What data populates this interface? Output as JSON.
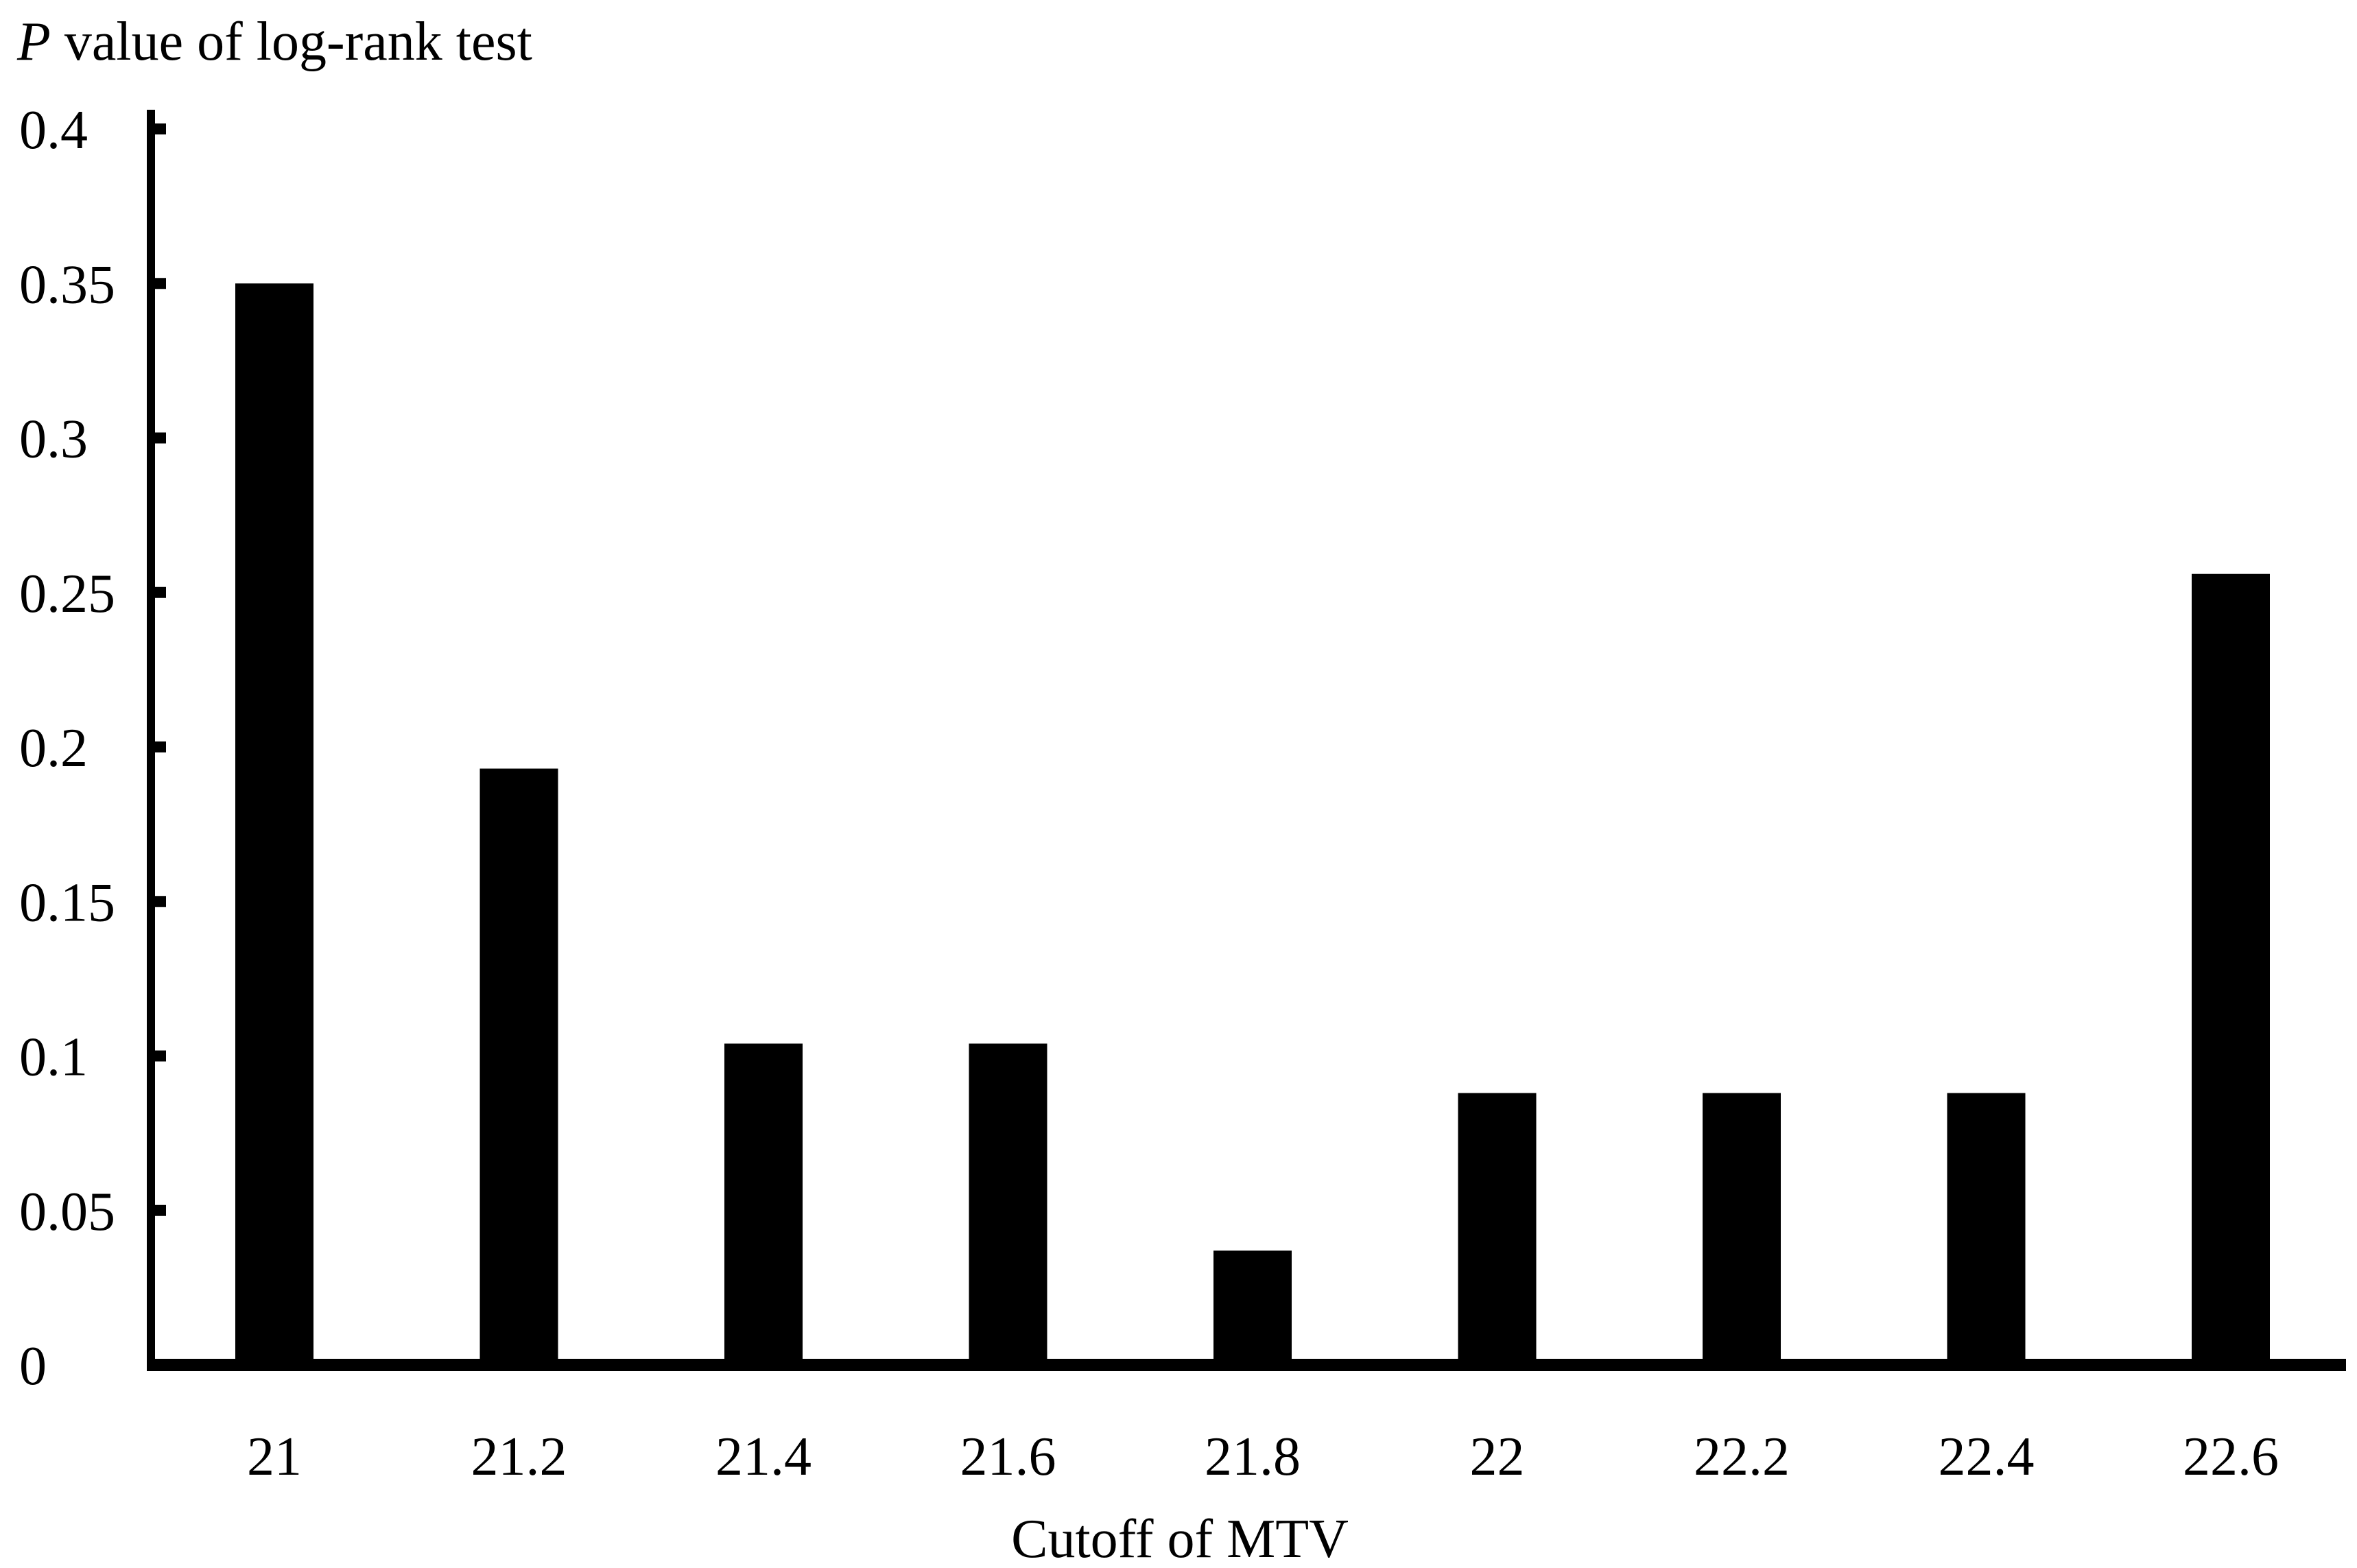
{
  "chart_data": {
    "type": "bar",
    "title": "",
    "ylabel_italic": "P",
    "ylabel_rest": " value of log-rank test",
    "xlabel": "Cutoff of MTV",
    "categories": [
      "21",
      "21.2",
      "21.4",
      "21.6",
      "21.8",
      "22",
      "22.2",
      "22.4",
      "22.6"
    ],
    "values": [
      0.35,
      0.193,
      0.104,
      0.104,
      0.037,
      0.088,
      0.088,
      0.088,
      0.256
    ],
    "y_ticks": [
      0,
      0.05,
      0.1,
      0.15,
      0.2,
      0.25,
      0.3,
      0.35,
      0.4
    ],
    "y_tick_labels": [
      "0",
      "0.05",
      "0.1",
      "0.15",
      "0.2",
      "0.25",
      "0.3",
      "0.35",
      "0.4"
    ],
    "ylim": [
      0,
      0.4
    ],
    "grid": false,
    "legend": "none",
    "bar_color": "#000000"
  }
}
